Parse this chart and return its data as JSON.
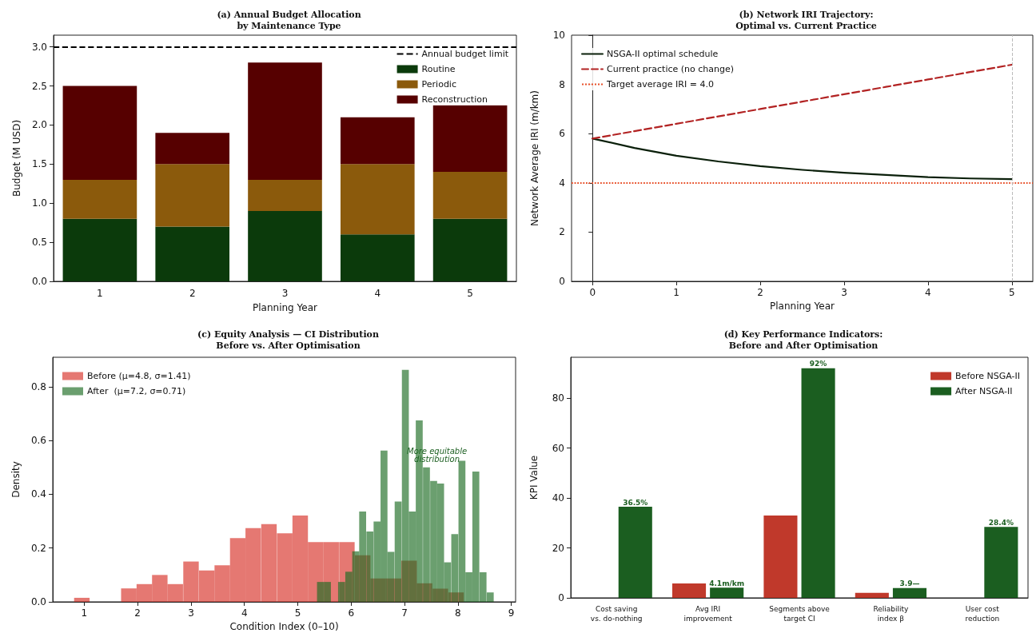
{
  "chart_data": [
    {
      "type": "bar",
      "title": "(a) Annual Budget Allocation\nby Maintenance Type",
      "xlabel": "Planning Year",
      "ylabel": "Budget (M USD)",
      "categories": [
        "1",
        "2",
        "3",
        "4",
        "5"
      ],
      "stacked": true,
      "series": [
        {
          "name": "Routine",
          "color": "#0b3a0b",
          "values": [
            0.8,
            0.7,
            0.9,
            0.6,
            0.8
          ]
        },
        {
          "name": "Periodic",
          "color": "#8b5a0c",
          "values": [
            0.5,
            0.8,
            0.4,
            0.9,
            0.6
          ]
        },
        {
          "name": "Reconstruction",
          "color": "#560000",
          "values": [
            1.2,
            0.4,
            1.5,
            0.6,
            0.86
          ]
        }
      ],
      "ylim": [
        0,
        3.15
      ],
      "yticks": [
        {
          "value": 0,
          "label": "0.0"
        },
        0.5,
        {
          "value": 1,
          "label": "1.0"
        },
        1.5,
        {
          "value": 2,
          "label": "2.0"
        },
        2.5,
        {
          "value": 3,
          "label": "3.0"
        }
      ],
      "ref_lines": [
        {
          "axis": "y",
          "value": 3,
          "label": "Annual budget limit",
          "color": "#000000",
          "line_style": "dashed"
        }
      ],
      "legend": "top right"
    },
    {
      "type": "line",
      "title": "(b) Network IRI Trajectory:\nOptimal vs. Current Practice",
      "xlabel": "Planning Year",
      "ylabel": "Network Average IRI (m/km)",
      "x": [
        0,
        0.5,
        1,
        1.5,
        2,
        2.5,
        3,
        3.5,
        4,
        4.5,
        5
      ],
      "series": [
        {
          "name": "NSGA-II optimal schedule",
          "color": "#0a1f0a",
          "line_style": "solid",
          "values": [
            5.8,
            5.42,
            5.1,
            4.87,
            4.68,
            4.53,
            4.41,
            4.32,
            4.23,
            4.18,
            4.15
          ]
        },
        {
          "name": "Current practice (no change)",
          "color": "#b22222",
          "line_style": "dashed",
          "values": [
            5.8,
            6.1,
            6.4,
            6.7,
            7.0,
            7.3,
            7.6,
            7.9,
            8.2,
            8.5,
            8.8
          ]
        }
      ],
      "xlim": [
        -0.25,
        5.25
      ],
      "xticks": [
        0,
        1,
        2,
        3,
        4,
        5
      ],
      "ylim": [
        0,
        10
      ],
      "yticks": [
        0,
        2,
        4,
        6,
        8,
        10
      ],
      "ref_lines": [
        {
          "axis": "y",
          "value": 4,
          "label": "Target average IRI = 4.0",
          "color": "#e8502a",
          "line_style": "dotted"
        },
        {
          "axis": "x",
          "value": 5,
          "color": "#bbbbbb",
          "line_style": "dashed"
        }
      ],
      "legend": "top left"
    },
    {
      "type": "histogram",
      "title": "(c) Equity Analysis — CI Distribution\nBefore vs. After Optimisation",
      "xlabel": "Condition Index (0–10)",
      "ylabel": "Density",
      "bins": [
        0.81,
        1.1,
        1.69,
        1.98,
        2.27,
        2.56,
        2.85,
        3.15,
        3.44,
        3.73,
        4.02,
        4.31,
        4.61,
        4.9,
        5.19,
        5.48,
        5.77,
        6.07,
        6.36,
        6.65,
        6.94,
        7.23,
        7.52,
        7.82,
        8.11
      ],
      "series": [
        {
          "name": "Before (μ=4.8, σ=1.41)",
          "color": "#d73027",
          "values": [
            0.015,
            0,
            0.05,
            0.066,
            0.1,
            0.066,
            0.15,
            0.117,
            0.136,
            0.237,
            0.274,
            0.289,
            0.255,
            0.321,
            0.222,
            0.222,
            0.222,
            0.173,
            0.087,
            0.087,
            0.153,
            0.069,
            0.049,
            0.035
          ]
        },
        {
          "name": "After  (μ=7.2, σ=0.71)",
          "color": "#1b6b22",
          "bins": [
            5.36,
            5.49,
            5.62,
            5.75,
            5.89,
            6.02,
            6.15,
            6.28,
            6.42,
            6.55,
            6.68,
            6.81,
            6.95,
            7.08,
            7.21,
            7.34,
            7.48,
            7.61,
            7.74,
            7.87,
            8.01,
            8.14,
            8.27,
            8.4,
            8.54,
            8.67
          ],
          "values": [
            0.074,
            0.074,
            0,
            0.074,
            0.112,
            0.188,
            0.336,
            0.262,
            0.299,
            0.563,
            0.186,
            0.373,
            0.863,
            0.336,
            0.675,
            0.5,
            0.45,
            0.44,
            0.147,
            0.252,
            0.525,
            0.11,
            0.485,
            0.11,
            0.035
          ]
        }
      ],
      "xlim": [
        0.41,
        9.08
      ],
      "xticks": [
        1,
        2,
        3,
        4,
        5,
        6,
        7,
        8,
        9
      ],
      "ylim": [
        0,
        0.91
      ],
      "yticks": [
        {
          "value": 0,
          "label": "0.0"
        },
        0.2,
        0.4,
        0.6,
        0.8
      ],
      "annotations": [
        "More equitable\ndistribution"
      ],
      "legend": "top left"
    },
    {
      "type": "bar",
      "title": "(d) Key Performance Indicators:\nBefore and After Optimisation",
      "ylabel": "KPI Value",
      "categories": [
        "Cost saving\nvs. do-nothing",
        "Avg IRI\nimprovement",
        "Segments above\ntarget CI",
        "Reliability\nindex β",
        "User cost\nreduction"
      ],
      "series": [
        {
          "name": "Before NSGA-II",
          "color": "#c0392b",
          "values": [
            0,
            5.8,
            33,
            2.0,
            0
          ]
        },
        {
          "name": "After NSGA-II",
          "color": "#1b5e20",
          "values": [
            36.5,
            4.1,
            92,
            3.9,
            28.4
          ],
          "value_labels": [
            "36.5%",
            "4.1m/km",
            "92%",
            "3.9—",
            "28.4%"
          ]
        }
      ],
      "ylim": [
        0,
        96.4
      ],
      "yticks": [
        0,
        20,
        40,
        60,
        80
      ],
      "legend": "top right"
    }
  ]
}
